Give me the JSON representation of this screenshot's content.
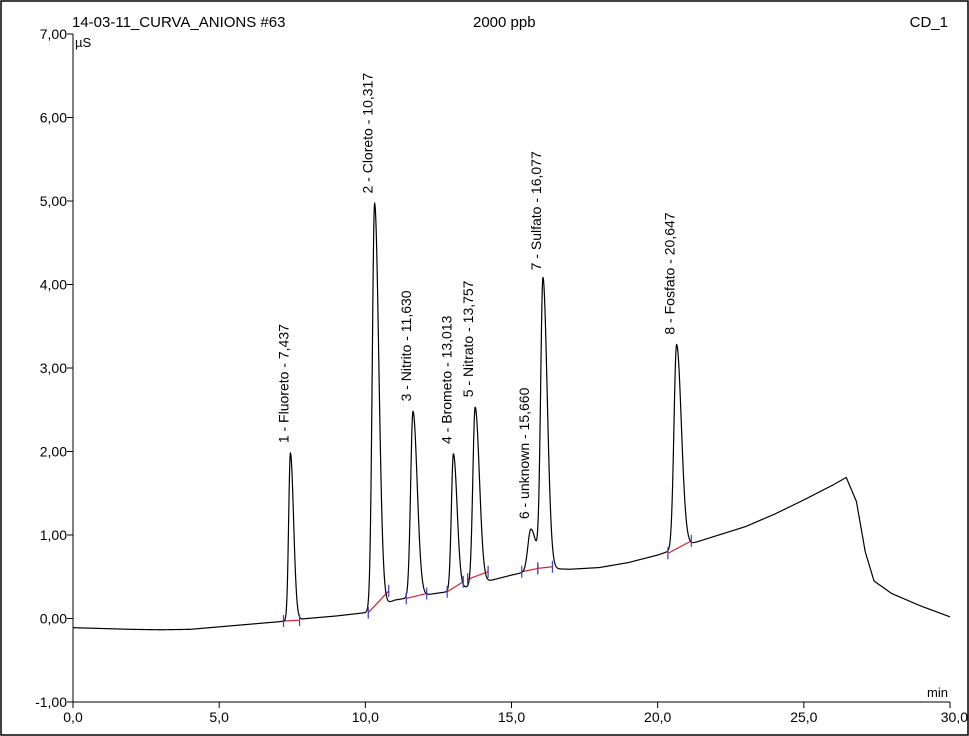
{
  "header": {
    "sample": "14-03-11_CURVA_ANIONS #63",
    "concentration": "2000 ppb",
    "channel": "CD_1"
  },
  "chart_data": {
    "type": "line",
    "xlabel": "min",
    "ylabel": "µS",
    "xlim": [
      0,
      30
    ],
    "ylim": [
      -1,
      7
    ],
    "xticks": [
      0,
      5,
      10,
      15,
      20,
      25,
      30
    ],
    "xtick_labels": [
      "0,0",
      "5,0",
      "10,0",
      "15,0",
      "20,0",
      "25,0",
      "30,0"
    ],
    "yticks": [
      -1,
      0,
      1,
      2,
      3,
      4,
      5,
      6,
      7
    ],
    "ytick_labels": [
      "-1,00",
      "0,00",
      "1,00",
      "2,00",
      "3,00",
      "4,00",
      "5,00",
      "6,00",
      "7,00"
    ],
    "line_color": "#000000",
    "integration_baseline_color": "#e0202a",
    "marker_color": "#3a3ae0",
    "background": [
      [
        0,
        -0.11
      ],
      [
        1,
        -0.12
      ],
      [
        2,
        -0.13
      ],
      [
        3,
        -0.135
      ],
      [
        4,
        -0.13
      ],
      [
        5,
        -0.1
      ],
      [
        6,
        -0.07
      ],
      [
        7,
        -0.04
      ],
      [
        8,
        0.0
      ],
      [
        9,
        0.03
      ],
      [
        10,
        0.07
      ],
      [
        11,
        0.22
      ],
      [
        12,
        0.28
      ],
      [
        13,
        0.33
      ],
      [
        14,
        0.43
      ],
      [
        15,
        0.52
      ],
      [
        16,
        0.6
      ],
      [
        17,
        0.59
      ],
      [
        18,
        0.61
      ],
      [
        19,
        0.67
      ],
      [
        20,
        0.76
      ],
      [
        21,
        0.88
      ],
      [
        22,
        0.99
      ],
      [
        23,
        1.1
      ],
      [
        24,
        1.25
      ],
      [
        25,
        1.42
      ],
      [
        26,
        1.6
      ],
      [
        26.45,
        1.69
      ],
      [
        26.8,
        1.4
      ],
      [
        27.1,
        0.8
      ],
      [
        27.4,
        0.45
      ],
      [
        28,
        0.3
      ],
      [
        29,
        0.15
      ],
      [
        30,
        0.02
      ]
    ],
    "peaks": [
      {
        "number": 1,
        "name": "Fluoreto",
        "rt": 7.437,
        "height": 1.98,
        "width": 0.06,
        "label": "1 - Fluoreto - 7,437"
      },
      {
        "number": 2,
        "name": "Cloreto",
        "rt": 10.317,
        "height": 4.97,
        "width": 0.08,
        "label": "2 - Cloreto - 10,317"
      },
      {
        "number": 3,
        "name": "Nitrito",
        "rt": 11.63,
        "height": 2.48,
        "width": 0.08,
        "label": "3 - Nitrito - 11,630"
      },
      {
        "number": 4,
        "name": "Brometo",
        "rt": 13.013,
        "height": 1.97,
        "width": 0.07,
        "label": "4 - Brometo - 13,013"
      },
      {
        "number": 5,
        "name": "Nitrato",
        "rt": 13.757,
        "height": 2.53,
        "width": 0.08,
        "label": "5 - Nitrato - 13,757"
      },
      {
        "number": 6,
        "name": "unknown",
        "rt": 15.66,
        "height": 1.07,
        "width": 0.1,
        "label": "6 - unknown - 15,660"
      },
      {
        "number": 7,
        "name": "Sulfato",
        "rt": 16.077,
        "height": 4.05,
        "width": 0.08,
        "label": "7 - Sulfato - 16,077"
      },
      {
        "number": 8,
        "name": "Fosfato",
        "rt": 20.647,
        "height": 3.28,
        "width": 0.09,
        "label": "8 - Fosfato - 20,647"
      }
    ],
    "integration_segments": [
      [
        [
          7.2,
          -0.03
        ],
        [
          7.75,
          -0.02
        ]
      ],
      [
        [
          10.1,
          0.07
        ],
        [
          10.8,
          0.33
        ]
      ],
      [
        [
          11.4,
          0.24
        ],
        [
          12.1,
          0.3
        ]
      ],
      [
        [
          12.8,
          0.32
        ],
        [
          13.35,
          0.44
        ]
      ],
      [
        [
          13.5,
          0.47
        ],
        [
          14.2,
          0.56
        ]
      ],
      [
        [
          15.35,
          0.56
        ],
        [
          15.9,
          0.6
        ]
      ],
      [
        [
          15.9,
          0.6
        ],
        [
          16.4,
          0.62
        ]
      ],
      [
        [
          20.35,
          0.78
        ],
        [
          21.15,
          0.93
        ]
      ]
    ]
  }
}
